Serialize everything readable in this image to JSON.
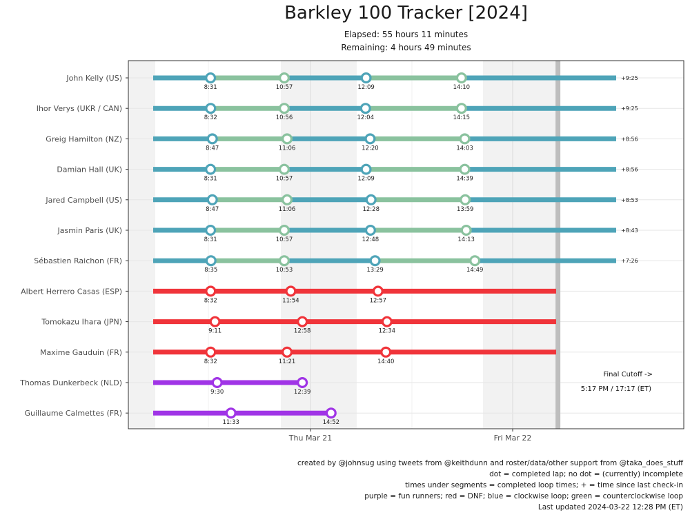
{
  "header": {
    "title": "Barkley 100 Tracker [2024]",
    "elapsed": "Elapsed: 55 hours 11 minutes",
    "remaining": "Remaining: 4 hours 49 minutes"
  },
  "footer": {
    "lines": [
      "created by @johnsug using tweets from @keithdunn and roster/data/other support from @taka_does_stuff",
      "dot = completed lap; no dot = (currently) incomplete",
      "times under segments = completed loop times; + = time since last check-in",
      "purple = fun runners; red = DNF; blue = clockwise loop; green = counterclockwise loop",
      "Last updated 2024-03-22 12:28 PM (ET)"
    ]
  },
  "colors": {
    "clockwise": "#4ea4b8",
    "counterclockwise": "#8ac29e",
    "dnf": "#f0343a",
    "fun": "#a034e6",
    "night": "#f2f2f2",
    "cutoff": "#bebebe"
  },
  "chart_data": {
    "type": "timeline",
    "x_axis": {
      "ticks": [
        "Thu Mar 21",
        "Fri Mar 22"
      ],
      "unit": "elapsed hours from race start"
    },
    "cutoff_label_1": "Final Cutoff ->",
    "cutoff_label_2": "5:17 PM / 17:17 (ET)",
    "runners": [
      {
        "name": "John Kelly (US)",
        "status": "active",
        "laps": [
          "8:31",
          "10:57",
          "12:09",
          "14:10"
        ],
        "since": "+9:25"
      },
      {
        "name": "Ihor Verys (UKR / CAN)",
        "status": "active",
        "laps": [
          "8:32",
          "10:56",
          "12:04",
          "14:15"
        ],
        "since": "+9:25"
      },
      {
        "name": "Greig Hamilton (NZ)",
        "status": "active",
        "laps": [
          "8:47",
          "11:06",
          "12:20",
          "14:03"
        ],
        "since": "+8:56"
      },
      {
        "name": "Damian Hall (UK)",
        "status": "active",
        "laps": [
          "8:31",
          "10:57",
          "12:09",
          "14:39"
        ],
        "since": "+8:56"
      },
      {
        "name": "Jared Campbell (US)",
        "status": "active",
        "laps": [
          "8:47",
          "11:06",
          "12:28",
          "13:59"
        ],
        "since": "+8:53"
      },
      {
        "name": "Jasmin Paris (UK)",
        "status": "active",
        "laps": [
          "8:31",
          "10:57",
          "12:48",
          "14:13"
        ],
        "since": "+8:43"
      },
      {
        "name": "Sébastien Raichon (FR)",
        "status": "active",
        "laps": [
          "8:35",
          "10:53",
          "13:29",
          "14:49"
        ],
        "since": "+7:26"
      },
      {
        "name": "Albert Herrero Casas (ESP)",
        "status": "dnf",
        "laps": [
          "8:32",
          "11:54",
          "12:57"
        ],
        "since": ""
      },
      {
        "name": "Tomokazu Ihara (JPN)",
        "status": "dnf",
        "laps": [
          "9:11",
          "12:58",
          "12:34"
        ],
        "since": ""
      },
      {
        "name": "Maxime Gauduin (FR)",
        "status": "dnf",
        "laps": [
          "8:32",
          "11:21",
          "14:40"
        ],
        "since": ""
      },
      {
        "name": "Thomas Dunkerbeck (NLD)",
        "status": "fun",
        "laps": [
          "9:30",
          "12:39"
        ],
        "since": ""
      },
      {
        "name": "Guillaume Calmettes (FR)",
        "status": "fun",
        "laps": [
          "11:33",
          "14:52"
        ],
        "since": ""
      }
    ]
  }
}
